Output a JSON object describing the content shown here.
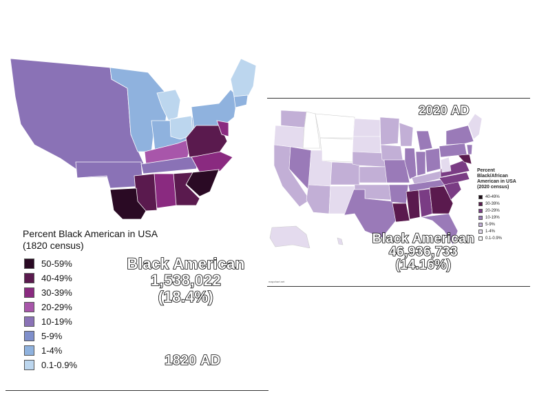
{
  "left": {
    "legend_title_line1": "Percent Black American in USA",
    "legend_title_line2": "(1820 census)",
    "legend": [
      {
        "label": "50-59%",
        "color": "#2a0a24"
      },
      {
        "label": "40-49%",
        "color": "#5a1a4e"
      },
      {
        "label": "30-39%",
        "color": "#8a2a80"
      },
      {
        "label": "20-29%",
        "color": "#a856aa"
      },
      {
        "label": "10-19%",
        "color": "#8a72b6"
      },
      {
        "label": "5-9%",
        "color": "#7f8fcb"
      },
      {
        "label": "1-4%",
        "color": "#8fb2de"
      },
      {
        "label": "0.1-0.9%",
        "color": "#bcd6ee"
      }
    ],
    "overlay_line1": "Black American",
    "overlay_line2": "1,538,022",
    "overlay_line3": "(18.4%)",
    "year_label": "1820 AD"
  },
  "right": {
    "year_label": "2020 AD",
    "legend_title_line1": "Percent",
    "legend_title_line2": "Black/African",
    "legend_title_line3": "American in USA",
    "legend_title_line4": "(2020 census)",
    "legend": [
      {
        "label": "40-49%",
        "color": "#1a0a14"
      },
      {
        "label": "30-39%",
        "color": "#5a1a4e"
      },
      {
        "label": "20-29%",
        "color": "#7a3c84"
      },
      {
        "label": "10-19%",
        "color": "#9a7ab8"
      },
      {
        "label": "5-9%",
        "color": "#c2afd6"
      },
      {
        "label": "1-4%",
        "color": "#e4dbee"
      },
      {
        "label": "0.1-0.9%",
        "color": "#ffffff"
      }
    ],
    "overlay_line1": "Black American",
    "overlay_line2": "46,936,733",
    "overlay_line3": "(14.16%)",
    "credit": "mapchart.net"
  }
}
